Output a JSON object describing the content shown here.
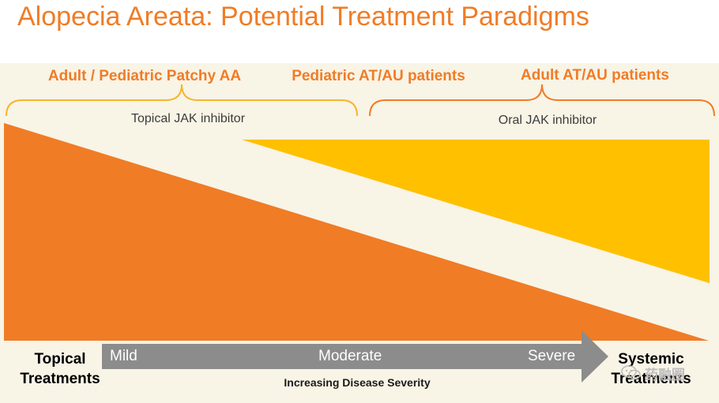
{
  "title": "Alopecia Areata: Potential Treatment Paradigms",
  "groups": {
    "adult_pediatric_patchy": "Adult / Pediatric Patchy AA",
    "pediatric_at_au": "Pediatric AT/AU patients",
    "adult_at_au": "Adult AT/AU patients"
  },
  "treatments": {
    "topical_jak": "Topical JAK inhibitor",
    "oral_jak": "Oral JAK inhibitor"
  },
  "severity": {
    "mild": "Mild",
    "moderate": "Moderate",
    "severe": "Severe",
    "axis_label": "Increasing Disease Severity"
  },
  "ends": {
    "topical": "Topical Treatments",
    "systemic": "Systemic Treatments"
  },
  "colors": {
    "title": "#f07c26",
    "orange_wedge": "#f07c26",
    "yellow_wedge": "#ffc000",
    "arrow": "#8c8c8c",
    "panel_bg": "#f8f4e6"
  }
}
